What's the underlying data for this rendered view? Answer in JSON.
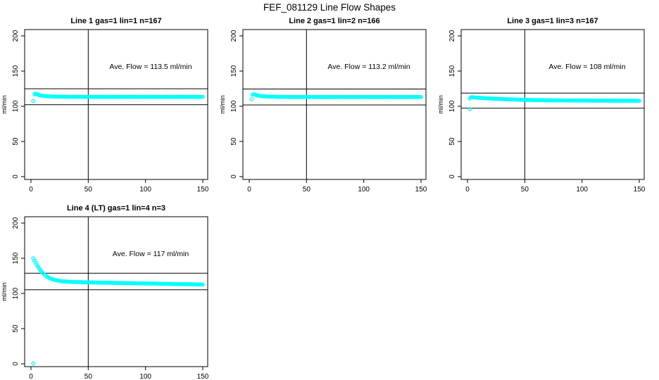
{
  "title": "FEF_081129  Line Flow Shapes",
  "y_axis_label": "ml/min",
  "colors": {
    "points": "#00FFFF",
    "axis": "#000000",
    "ref_line": "#000000",
    "background": "#FFFFFF"
  },
  "chart_data": [
    {
      "type": "scatter",
      "title": "Line 1 gas=1 lin=1 n=167",
      "gas": 1,
      "lin": 1,
      "n": 167,
      "annotation": "Ave. Flow =  113.5  ml/min",
      "ave_flow_ml_min": 113.5,
      "xlabel": "",
      "ylabel": "ml/min",
      "x_ticks": [
        0,
        50,
        100,
        150
      ],
      "y_ticks": [
        0,
        50,
        100,
        150,
        200
      ],
      "xlim": [
        0,
        150
      ],
      "ylim": [
        0,
        200
      ],
      "vline_x": 50,
      "ref_lines": [
        124.9,
        102.2
      ],
      "outliers": [],
      "points": [
        [
          2,
          107.5
        ],
        [
          3,
          117
        ],
        [
          4,
          118
        ],
        [
          5,
          117.5
        ],
        [
          6,
          116.5
        ],
        [
          7,
          116
        ],
        [
          8,
          115.5
        ],
        [
          9,
          115.2
        ],
        [
          10,
          115
        ],
        [
          12,
          114.6
        ],
        [
          14,
          114.3
        ],
        [
          16,
          114.1
        ],
        [
          18,
          113.9
        ],
        [
          20,
          113.8
        ],
        [
          25,
          113.6
        ],
        [
          30,
          113.5
        ],
        [
          35,
          113.4
        ],
        [
          40,
          113.5
        ],
        [
          45,
          113.3
        ],
        [
          50,
          113.4
        ],
        [
          55,
          113.3
        ],
        [
          60,
          113.4
        ],
        [
          65,
          113.3
        ],
        [
          70,
          113.4
        ],
        [
          75,
          113.3
        ],
        [
          80,
          113.4
        ],
        [
          85,
          113.3
        ],
        [
          90,
          113.4
        ],
        [
          95,
          113.3
        ],
        [
          100,
          113.4
        ],
        [
          105,
          113.3
        ],
        [
          110,
          113.4
        ],
        [
          115,
          113.3
        ],
        [
          120,
          113.4
        ],
        [
          125,
          113.3
        ],
        [
          130,
          113.4
        ],
        [
          135,
          113.3
        ],
        [
          140,
          113.4
        ],
        [
          145,
          113.3
        ],
        [
          150,
          113.4
        ]
      ]
    },
    {
      "type": "scatter",
      "title": "Line 2 gas=1 lin=2 n=166",
      "gas": 1,
      "lin": 2,
      "n": 166,
      "annotation": "Ave. Flow =  113.2  ml/min",
      "ave_flow_ml_min": 113.2,
      "xlabel": "",
      "ylabel": "ml/min",
      "x_ticks": [
        0,
        50,
        100,
        150
      ],
      "y_ticks": [
        0,
        50,
        100,
        150,
        200
      ],
      "xlim": [
        0,
        150
      ],
      "ylim": [
        0,
        200
      ],
      "vline_x": 50,
      "ref_lines": [
        124.5,
        101.9
      ],
      "outliers": [],
      "points": [
        [
          2,
          110
        ],
        [
          3,
          116.5
        ],
        [
          4,
          117
        ],
        [
          5,
          116.5
        ],
        [
          6,
          116
        ],
        [
          7,
          115.5
        ],
        [
          8,
          115
        ],
        [
          10,
          114.5
        ],
        [
          12,
          114.2
        ],
        [
          15,
          113.9
        ],
        [
          20,
          113.6
        ],
        [
          25,
          113.4
        ],
        [
          30,
          113.3
        ],
        [
          40,
          113.2
        ],
        [
          50,
          113.2
        ],
        [
          60,
          113.2
        ],
        [
          70,
          113.1
        ],
        [
          80,
          113.2
        ],
        [
          90,
          113.1
        ],
        [
          100,
          113.2
        ],
        [
          110,
          113.1
        ],
        [
          120,
          113.2
        ],
        [
          130,
          113.1
        ],
        [
          140,
          113.2
        ],
        [
          150,
          113.2
        ]
      ]
    },
    {
      "type": "scatter",
      "title": "Line 3 gas=1 lin=3 n=167",
      "gas": 1,
      "lin": 3,
      "n": 167,
      "annotation": "Ave. Flow =  108  ml/min",
      "ave_flow_ml_min": 108,
      "xlabel": "",
      "ylabel": "ml/min",
      "x_ticks": [
        0,
        50,
        100,
        150
      ],
      "y_ticks": [
        0,
        50,
        100,
        150,
        200
      ],
      "xlim": [
        0,
        150
      ],
      "ylim": [
        0,
        200
      ],
      "vline_x": 50,
      "ref_lines": [
        118.8,
        97.2
      ],
      "outliers": [
        [
          2,
          96
        ]
      ],
      "points": [
        [
          2,
          111
        ],
        [
          3,
          112.5
        ],
        [
          4,
          113
        ],
        [
          5,
          112.8
        ],
        [
          6,
          112.5
        ],
        [
          8,
          112.2
        ],
        [
          10,
          112
        ],
        [
          12,
          111.8
        ],
        [
          15,
          111.5
        ],
        [
          20,
          111
        ],
        [
          25,
          110.6
        ],
        [
          30,
          110.2
        ],
        [
          35,
          109.9
        ],
        [
          40,
          109.6
        ],
        [
          45,
          109.3
        ],
        [
          50,
          109.1
        ],
        [
          55,
          108.9
        ],
        [
          60,
          108.7
        ],
        [
          70,
          108.5
        ],
        [
          80,
          108.3
        ],
        [
          90,
          108.2
        ],
        [
          100,
          108.1
        ],
        [
          110,
          108
        ],
        [
          120,
          108
        ],
        [
          130,
          107.9
        ],
        [
          140,
          107.9
        ],
        [
          150,
          107.8
        ]
      ]
    },
    {
      "type": "scatter",
      "title": "Line 4 (LT) gas=1 lin=4 n=3",
      "gas": 1,
      "lin": 4,
      "n": 3,
      "annotation": "Ave. Flow =  117  ml/min",
      "ave_flow_ml_min": 117,
      "xlabel": "",
      "ylabel": "ml/min",
      "x_ticks": [
        0,
        50,
        100,
        150
      ],
      "y_ticks": [
        0,
        50,
        100,
        150,
        200
      ],
      "xlim": [
        0,
        150
      ],
      "ylim": [
        0,
        200
      ],
      "vline_x": 50,
      "ref_lines": [
        128.7,
        105.3
      ],
      "outliers": [
        [
          2,
          0.5
        ]
      ],
      "points": [
        [
          2,
          150
        ],
        [
          3,
          147
        ],
        [
          4,
          144
        ],
        [
          5,
          141
        ],
        [
          6,
          138.5
        ],
        [
          7,
          136
        ],
        [
          8,
          133.5
        ],
        [
          9,
          131.5
        ],
        [
          10,
          129.5
        ],
        [
          11,
          128
        ],
        [
          12,
          126.5
        ],
        [
          13,
          125
        ],
        [
          14,
          124
        ],
        [
          15,
          123
        ],
        [
          16,
          122
        ],
        [
          17,
          121.3
        ],
        [
          18,
          120.6
        ],
        [
          19,
          120
        ],
        [
          20,
          119.5
        ],
        [
          22,
          118.8
        ],
        [
          24,
          118.2
        ],
        [
          26,
          117.7
        ],
        [
          28,
          117.3
        ],
        [
          30,
          117
        ],
        [
          35,
          116.5
        ],
        [
          40,
          116.2
        ],
        [
          45,
          116
        ],
        [
          50,
          115.8
        ],
        [
          60,
          115.4
        ],
        [
          70,
          115.1
        ],
        [
          80,
          114.8
        ],
        [
          90,
          114.5
        ],
        [
          100,
          114.2
        ],
        [
          110,
          113.9
        ],
        [
          120,
          113.6
        ],
        [
          130,
          113.3
        ],
        [
          140,
          113
        ],
        [
          150,
          112.6
        ]
      ]
    }
  ]
}
